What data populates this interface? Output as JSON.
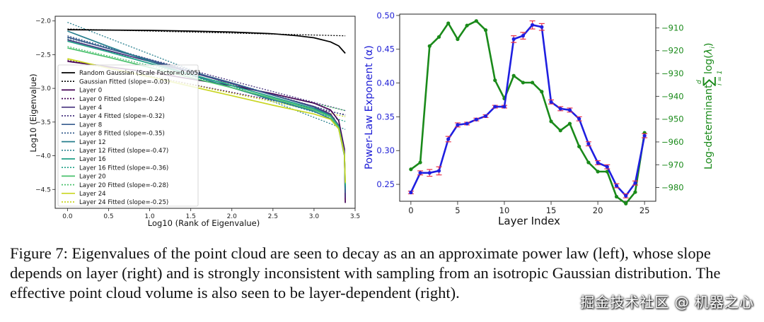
{
  "figure_caption": "Figure 7: Eigenvalues of the point cloud are seen to decay as an an approximate power law (left), whose slope depends on layer (right) and is strongly inconsistent with sampling from an isotropic Gaussian distribution. The effective point cloud volume is also seen to be layer-dependent (right).",
  "watermark": "掘金技术社区 @ 机器之心",
  "chart_data": [
    {
      "type": "line",
      "xlabel": "Log10 (Rank of Eigenvalue)",
      "ylabel": "Log10 (Eigenvalue)",
      "xlim": [
        -0.15,
        3.5
      ],
      "ylim": [
        -4.78,
        -1.93
      ],
      "xticks": [
        0.0,
        0.5,
        1.0,
        1.5,
        2.0,
        2.5,
        3.0,
        3.5
      ],
      "xtick_labels": [
        "0.0",
        "0.5",
        "1.0",
        "1.5",
        "2.0",
        "2.5",
        "3.0",
        "3.5"
      ],
      "yticks": [
        -2.0,
        -2.5,
        -3.0,
        -3.5,
        -4.0,
        -4.5
      ],
      "ytick_labels": [
        "−2.0",
        "−2.5",
        "−3.0",
        "−3.5",
        "−4.0",
        "−4.5"
      ],
      "legend_position": "left",
      "series": [
        {
          "name": "Random Gaussian (Scale Factor=0.005)",
          "color": "#000000",
          "style": "solid",
          "x": [
            0.0,
            0.5,
            1.0,
            1.5,
            2.0,
            2.5,
            2.8,
            3.0,
            3.2,
            3.3,
            3.38
          ],
          "y": [
            -2.13,
            -2.135,
            -2.14,
            -2.15,
            -2.165,
            -2.19,
            -2.22,
            -2.25,
            -2.31,
            -2.37,
            -2.48
          ]
        },
        {
          "name": "Gaussian Fitted (slope=-0.03)",
          "color": "#000000",
          "style": "dotted",
          "x": [
            0.0,
            3.38
          ],
          "y": [
            -2.12,
            -2.22
          ]
        },
        {
          "name": "Layer 0",
          "color": "#440154",
          "style": "solid",
          "x": [
            0.0,
            0.5,
            1.0,
            1.5,
            2.0,
            2.5,
            3.0,
            3.2,
            3.3,
            3.37,
            3.38
          ],
          "y": [
            -2.6,
            -2.68,
            -2.76,
            -2.86,
            -2.96,
            -3.08,
            -3.22,
            -3.32,
            -3.48,
            -3.9,
            -4.7
          ]
        },
        {
          "name": "Layer 0 Fitted (slope=-0.24)",
          "color": "#440154",
          "style": "dotted",
          "x": [
            0.0,
            3.38
          ],
          "y": [
            -2.58,
            -3.39
          ]
        },
        {
          "name": "Layer 4",
          "color": "#46327e",
          "style": "solid",
          "x": [
            0.0,
            0.5,
            1.0,
            1.5,
            2.0,
            2.5,
            3.0,
            3.2,
            3.3,
            3.37,
            3.38
          ],
          "y": [
            -2.28,
            -2.44,
            -2.6,
            -2.76,
            -2.93,
            -3.1,
            -3.27,
            -3.38,
            -3.55,
            -3.95,
            -4.62
          ]
        },
        {
          "name": "Layer 4 Fitted (slope=-0.32)",
          "color": "#46327e",
          "style": "dotted",
          "x": [
            0.0,
            3.38
          ],
          "y": [
            -2.25,
            -3.33
          ]
        },
        {
          "name": "Layer 8",
          "color": "#365c8d",
          "style": "solid",
          "x": [
            0.0,
            0.5,
            1.0,
            1.5,
            2.0,
            2.5,
            3.0,
            3.2,
            3.3,
            3.37,
            3.38
          ],
          "y": [
            -2.24,
            -2.41,
            -2.58,
            -2.75,
            -2.92,
            -3.1,
            -3.28,
            -3.4,
            -3.57,
            -3.98,
            -4.55
          ]
        },
        {
          "name": "Layer 8 Fitted (slope=-0.35)",
          "color": "#365c8d",
          "style": "dotted",
          "x": [
            0.0,
            3.38
          ],
          "y": [
            -2.22,
            -3.4
          ]
        },
        {
          "name": "Layer 12",
          "color": "#277f8e",
          "style": "solid",
          "x": [
            0.0,
            0.5,
            1.0,
            1.5,
            2.0,
            2.5,
            3.0,
            3.2,
            3.3,
            3.37,
            3.38
          ],
          "y": [
            -2.15,
            -2.38,
            -2.6,
            -2.8,
            -2.99,
            -3.17,
            -3.34,
            -3.45,
            -3.6,
            -4.0,
            -4.5
          ]
        },
        {
          "name": "Layer 12 Fitted (slope=-0.47)",
          "color": "#277f8e",
          "style": "dotted",
          "x": [
            0.0,
            3.38
          ],
          "y": [
            -2.02,
            -3.61
          ]
        },
        {
          "name": "Layer 16",
          "color": "#1fa187",
          "style": "solid",
          "x": [
            0.0,
            0.5,
            1.0,
            1.5,
            2.0,
            2.5,
            3.0,
            3.2,
            3.3,
            3.37,
            3.38
          ],
          "y": [
            -2.3,
            -2.46,
            -2.63,
            -2.79,
            -2.96,
            -3.13,
            -3.3,
            -3.41,
            -3.56,
            -3.97,
            -4.45
          ]
        },
        {
          "name": "Layer 16 Fitted (slope=-0.36)",
          "color": "#1fa187",
          "style": "dotted",
          "x": [
            0.0,
            3.38
          ],
          "y": [
            -2.27,
            -3.49
          ]
        },
        {
          "name": "Layer 20",
          "color": "#4ac16d",
          "style": "solid",
          "x": [
            0.0,
            0.5,
            1.0,
            1.5,
            2.0,
            2.5,
            3.0,
            3.2,
            3.3,
            3.37,
            3.38
          ],
          "y": [
            -2.4,
            -2.54,
            -2.69,
            -2.84,
            -2.99,
            -3.15,
            -3.32,
            -3.42,
            -3.58,
            -3.98,
            -4.42
          ]
        },
        {
          "name": "Layer 20 Fitted (slope=-0.28)",
          "color": "#4ac16d",
          "style": "dotted",
          "x": [
            0.0,
            3.38
          ],
          "y": [
            -2.38,
            -3.33
          ]
        },
        {
          "name": "Layer 24",
          "color": "#c9d622",
          "style": "solid",
          "x": [
            0.0,
            0.5,
            1.0,
            1.5,
            2.0,
            2.5,
            3.0,
            3.2,
            3.3,
            3.37,
            3.38
          ],
          "y": [
            -2.56,
            -2.7,
            -2.83,
            -2.97,
            -3.11,
            -3.25,
            -3.38,
            -3.46,
            -3.6,
            -3.98,
            -4.4
          ]
        },
        {
          "name": "Layer 24 Fitted (slope=-0.25)",
          "color": "#c9d622",
          "style": "dotted",
          "x": [
            0.0,
            3.38
          ],
          "y": [
            -2.57,
            -3.42
          ]
        }
      ]
    },
    {
      "type": "line",
      "xlabel": "Layer Index",
      "ylabel": "Power-Law Exponent (α)",
      "ylabel_right": "Log-determinant Σ_{i=1}^{d} log(λ_i)",
      "xlim": [
        -1.2,
        26.2
      ],
      "ylim": [
        0.225,
        0.502
      ],
      "ylim_right": [
        -986,
        -904
      ],
      "xticks": [
        0,
        5,
        10,
        15,
        20,
        25
      ],
      "xtick_labels": [
        "0",
        "5",
        "10",
        "15",
        "20",
        "25"
      ],
      "yticks": [
        0.25,
        0.3,
        0.35,
        0.4,
        0.45,
        0.5
      ],
      "ytick_labels": [
        "0.25",
        "0.30",
        "0.35",
        "0.40",
        "0.45",
        "0.50"
      ],
      "yticks_right": [
        -980,
        -970,
        -960,
        -950,
        -940,
        -930,
        -920,
        -910
      ],
      "ytick_right_labels": [
        "−980",
        "−970",
        "−960",
        "−950",
        "−940",
        "−930",
        "−920",
        "−910"
      ],
      "series": [
        {
          "name": "Power-Law Exponent (α)",
          "axis": "left",
          "color": "#1f1fe0",
          "error_color": "#e8334a",
          "x": [
            0,
            1,
            2,
            3,
            4,
            5,
            6,
            7,
            8,
            9,
            10,
            11,
            12,
            13,
            14,
            15,
            16,
            17,
            18,
            19,
            20,
            21,
            22,
            23,
            24,
            25
          ],
          "y": [
            0.238,
            0.267,
            0.267,
            0.27,
            0.317,
            0.338,
            0.34,
            0.346,
            0.351,
            0.365,
            0.365,
            0.465,
            0.47,
            0.486,
            0.483,
            0.372,
            0.362,
            0.36,
            0.347,
            0.31,
            0.282,
            0.276,
            0.248,
            0.233,
            0.252,
            0.322
          ],
          "err": [
            0.002,
            0.003,
            0.005,
            0.006,
            0.004,
            0.003,
            0.002,
            0.002,
            0.002,
            0.002,
            0.002,
            0.005,
            0.005,
            0.006,
            0.005,
            0.003,
            0.003,
            0.003,
            0.003,
            0.003,
            0.003,
            0.003,
            0.003,
            0.003,
            0.003,
            0.003
          ]
        },
        {
          "name": "Log-determinant",
          "axis": "right",
          "color": "#1a8a1a",
          "x": [
            0,
            1,
            2,
            3,
            4,
            5,
            6,
            7,
            8,
            9,
            10,
            11,
            12,
            13,
            14,
            15,
            16,
            17,
            18,
            19,
            20,
            21,
            22,
            23,
            24,
            25
          ],
          "y": [
            -972,
            -969,
            -918,
            -914,
            -908,
            -915,
            -909,
            -907,
            -911,
            -933,
            -941,
            -931,
            -934,
            -934,
            -938,
            -951,
            -955,
            -952,
            -962,
            -969,
            -973,
            -973,
            -984,
            -987,
            -982,
            -956
          ]
        }
      ]
    }
  ]
}
